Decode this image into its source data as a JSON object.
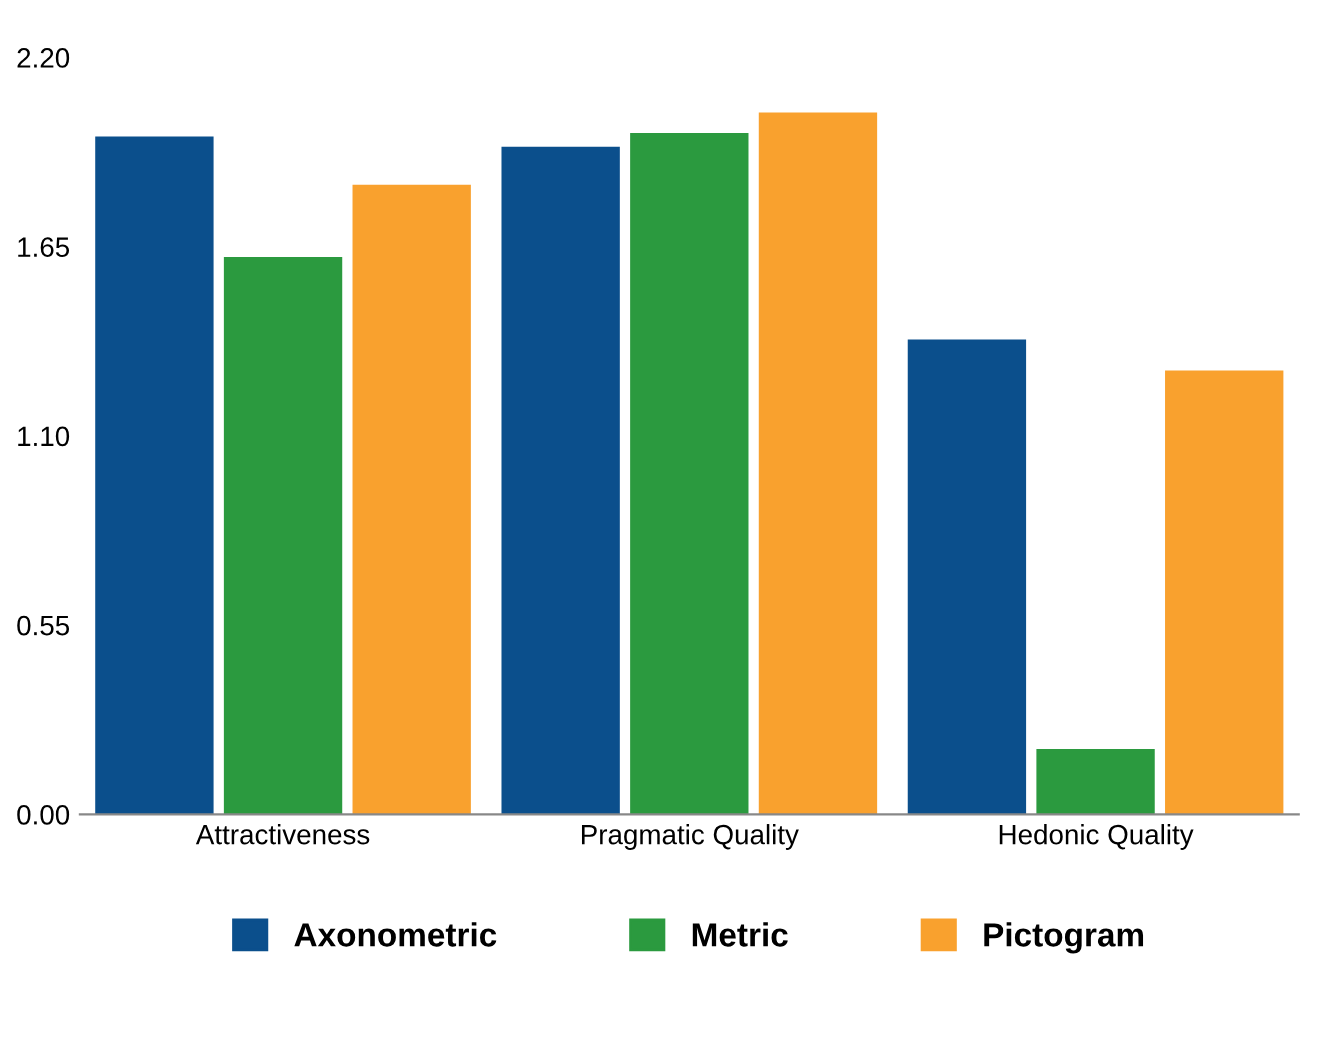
{
  "chart_data": {
    "type": "bar",
    "categories": [
      "Attractiveness",
      "Pragmatic Quality",
      "Hedonic Quality"
    ],
    "series": [
      {
        "name": "Axonometric",
        "color": "#0b4f8c",
        "values": [
          1.97,
          1.94,
          1.38
        ]
      },
      {
        "name": "Metric",
        "color": "#2b9a3f",
        "values": [
          1.62,
          1.98,
          0.19
        ]
      },
      {
        "name": "Pictogram",
        "color": "#f9a12e",
        "values": [
          1.83,
          2.04,
          1.29
        ]
      }
    ],
    "ylim": [
      0,
      2.2
    ],
    "yticks": [
      {
        "value": 0,
        "label": "0.00"
      },
      {
        "value": 0.55,
        "label": "0.55"
      },
      {
        "value": 1.1,
        "label": "1.10"
      },
      {
        "value": 1.65,
        "label": "1.65"
      },
      {
        "value": 2.2,
        "label": "2.20"
      }
    ],
    "grid": false,
    "legend": "bottom"
  }
}
